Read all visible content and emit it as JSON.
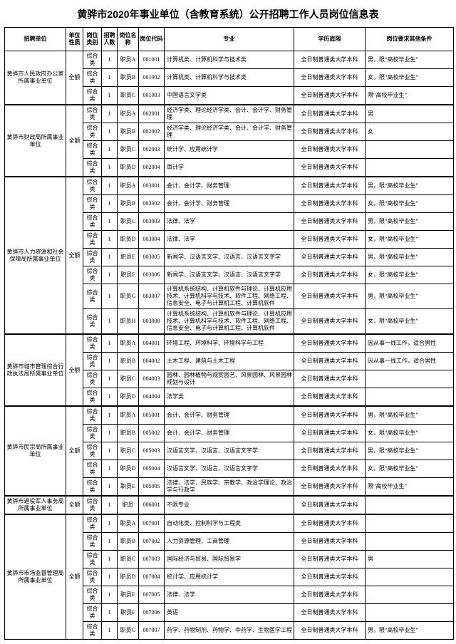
{
  "title": "黄骅市2020年事业单位（含教育系统）公开招聘工作人员岗位信息表",
  "headers": {
    "unit": "招聘单位",
    "nature": "单位性质",
    "ptype": "岗位类别",
    "num": "招聘人数",
    "pname": "岗位名称",
    "pcode": "岗位代码",
    "major": "专业",
    "edu": "学历底限",
    "other": "岗位要求其他条件"
  },
  "groups": [
    {
      "unit": "黄骅市人民政府办公室所属事业单位",
      "nature": "全额",
      "rows": [
        {
          "ptype": "综合类",
          "num": "1",
          "pname": "职员A",
          "pcode": "001001",
          "major": "计算机类、计算机科学与技术类",
          "edu": "全日制普通类大学本科",
          "other": "男，限“高校毕业生”"
        },
        {
          "ptype": "综合类",
          "num": "1",
          "pname": "职员B",
          "pcode": "001002",
          "major": "计算机类、计算机科学与技术类",
          "edu": "全日制普通类大学本科",
          "other": "女，限“高校毕业生”"
        },
        {
          "ptype": "综合类",
          "num": "1",
          "pname": "职员C",
          "pcode": "001003",
          "major": "中国语言文学类",
          "edu": "全日制普通类大学本科",
          "other": "限“高校毕业生”"
        }
      ]
    },
    {
      "unit": "黄骅市财政局所属事业单位",
      "nature": "全额",
      "rows": [
        {
          "ptype": "综合类",
          "num": "1",
          "pname": "职员A",
          "pcode": "002001",
          "major": "经济学类、理论经济学类、会计、会计学、财务管理",
          "edu": "全日制普通类大学本科",
          "other": "男"
        },
        {
          "ptype": "综合类",
          "num": "1",
          "pname": "职员B",
          "pcode": "002002",
          "major": "经济学类、理论经济学类、会计、会计学、财务管理",
          "edu": "全日制普通类大学本科",
          "other": "女"
        },
        {
          "ptype": "综合类",
          "num": "1",
          "pname": "职员C",
          "pcode": "002003",
          "major": "统计学、应用统计学",
          "edu": "全日制普通类大学本科",
          "other": ""
        },
        {
          "ptype": "综合类",
          "num": "1",
          "pname": "职员D",
          "pcode": "002004",
          "major": "审计学",
          "edu": "全日制普通类大学本科",
          "other": ""
        }
      ]
    },
    {
      "unit": "黄骅市人力资源和社会保障局所属事业单位",
      "nature": "全额",
      "rows": [
        {
          "ptype": "综合类",
          "num": "1",
          "pname": "职员A",
          "pcode": "003001",
          "major": "会计、会计学、财务管理",
          "edu": "全日制普通类大学本科",
          "other": "男，限“高校毕业生”"
        },
        {
          "ptype": "综合类",
          "num": "1",
          "pname": "职员B",
          "pcode": "003002",
          "major": "会计、会计学、财务管理",
          "edu": "全日制普通类大学本科",
          "other": "女，限“高校毕业生”"
        },
        {
          "ptype": "综合类",
          "num": "1",
          "pname": "职员C",
          "pcode": "003003",
          "major": "法律、法学",
          "edu": "全日制普通类大学本科",
          "other": "男，限“高校毕业生”"
        },
        {
          "ptype": "综合类",
          "num": "1",
          "pname": "职员D",
          "pcode": "003004",
          "major": "法律、法学",
          "edu": "全日制普通类大学本科",
          "other": "女，限“高校毕业生”"
        },
        {
          "ptype": "综合类",
          "num": "1",
          "pname": "职员E",
          "pcode": "003005",
          "major": "新闻学、汉语言文学、汉语言、汉语言文字学",
          "edu": "全日制普通类大学本科",
          "other": "男，限“高校毕业生”"
        },
        {
          "ptype": "综合类",
          "num": "1",
          "pname": "职员F",
          "pcode": "003006",
          "major": "新闻学、汉语言文学、汉语言、汉语言文字学",
          "edu": "全日制普通类大学本科",
          "other": "女，限“高校毕业生”"
        },
        {
          "ptype": "综合类",
          "num": "1",
          "pname": "职员G",
          "pcode": "003007",
          "major": "计算机系统结构、计算机软件与理论、计算机应用技术、计算机科学与技术、软件工程、网络工程、信息安全、电子与计算机工程、计算机软件",
          "edu": "全日制普通类大学本科",
          "other": "男，限“高校毕业生”"
        },
        {
          "ptype": "综合类",
          "num": "1",
          "pname": "职员H",
          "pcode": "003008",
          "major": "计算机系统结构、计算机软件与理论、计算机应用技术、计算机科学与技术、软件工程、网络工程、信息安全、电子与计算机工程、计算机软件",
          "edu": "全日制普通类大学本科",
          "other": "女，限“高校毕业生”"
        }
      ]
    },
    {
      "unit": "黄骅市城市管理综合行政执法局所属事业单位",
      "nature": "全额",
      "rows": [
        {
          "ptype": "综合类",
          "num": "1",
          "pname": "职员A",
          "pcode": "004001",
          "major": "环境工程、环境科学、环境科学与工程",
          "edu": "全日制普通类大学本科",
          "other": "因从事一线工作，适合男性"
        },
        {
          "ptype": "综合类",
          "num": "1",
          "pname": "职员B",
          "pcode": "004002",
          "major": "土木工程、建筑与土木工程",
          "edu": "全日制普通类大学本科",
          "other": "因从事一线工作，适合男性"
        },
        {
          "ptype": "综合类",
          "num": "1",
          "pname": "职员C",
          "pcode": "004003",
          "major": "园林、园林植物与观赏园艺、风景园林、风景园林规划与设计",
          "edu": "全日制普通类大学本科",
          "other": ""
        },
        {
          "ptype": "综合类",
          "num": "1",
          "pname": "职员D",
          "pcode": "004004",
          "major": "法学类",
          "edu": "全日制普通类大学本科",
          "other": ""
        }
      ]
    },
    {
      "unit": "黄骅市民宗局所属事业单位",
      "nature": "全额",
      "rows": [
        {
          "ptype": "综合类",
          "num": "1",
          "pname": "职员A",
          "pcode": "005001",
          "major": "会计、会计学、财务管理",
          "edu": "全日制普通类大学本科",
          "other": "男，限“高校毕业生”"
        },
        {
          "ptype": "综合类",
          "num": "1",
          "pname": "职员B",
          "pcode": "005002",
          "major": "会计、会计学、财务管理",
          "edu": "全日制普通类大学本科",
          "other": "女，限“高校毕业生”"
        },
        {
          "ptype": "综合类",
          "num": "1",
          "pname": "职员C",
          "pcode": "005003",
          "major": "汉语言文学、汉语言、汉语言文字学",
          "edu": "全日制普通类大学本科",
          "other": "男，限“高校毕业生”"
        },
        {
          "ptype": "综合类",
          "num": "1",
          "pname": "职员D",
          "pcode": "005004",
          "major": "汉语言文学、汉语言、汉语言文字学",
          "edu": "全日制普通类大学本科",
          "other": "女，限“高校毕业生”"
        },
        {
          "ptype": "综合类",
          "num": "1",
          "pname": "职员E",
          "pcode": "005005",
          "major": "法律、法学、民族学、宗教学、政治学理论、政治学与行政学",
          "edu": "全日制普通类大学本科",
          "other": "限“高校毕业生”"
        }
      ]
    },
    {
      "unit": "黄骅市退役军人事务局所属事业单位",
      "nature": "全额",
      "rows": [
        {
          "ptype": "综合类",
          "num": "1",
          "pname": "职员",
          "pcode": "006001",
          "major": "不限专业",
          "edu": "全日制普通类大学本科",
          "other": ""
        }
      ]
    },
    {
      "unit": "黄骅市市场监督管理局所属事业单位",
      "nature": "全额",
      "rows": [
        {
          "ptype": "综合类",
          "num": "1",
          "pname": "职员A",
          "pcode": "007001",
          "major": "自动化类、控制科学与工程类",
          "edu": "全日制普通类大学本科",
          "other": ""
        },
        {
          "ptype": "综合类",
          "num": "1",
          "pname": "职员B",
          "pcode": "007002",
          "major": "人力资源管理、工商管理",
          "edu": "全日制普通类大学本科",
          "other": ""
        },
        {
          "ptype": "综合类",
          "num": "1",
          "pname": "职员C",
          "pcode": "007003",
          "major": "国际经济与贸易、国际贸易学",
          "edu": "全日制普通类大学本科",
          "other": "男"
        },
        {
          "ptype": "综合类",
          "num": "1",
          "pname": "职员D",
          "pcode": "007004",
          "major": "统计学、应用统计学",
          "edu": "全日制普通类大学本科",
          "other": ""
        },
        {
          "ptype": "综合类",
          "num": "1",
          "pname": "职员E",
          "pcode": "007005",
          "major": "法律、法学",
          "edu": "全日制普通类大学本科",
          "other": ""
        },
        {
          "ptype": "综合类",
          "num": "1",
          "pname": "职员F",
          "pcode": "007006",
          "major": "英语",
          "edu": "全日制普通类大学本科",
          "other": ""
        },
        {
          "ptype": "综合类",
          "num": "1",
          "pname": "职员G",
          "pcode": "007007",
          "major": "药学、药物制剂、药物学、中药学、生物医学工程",
          "edu": "全日制普通类大学本科",
          "other": "男，限“高校毕业生”"
        }
      ]
    }
  ]
}
